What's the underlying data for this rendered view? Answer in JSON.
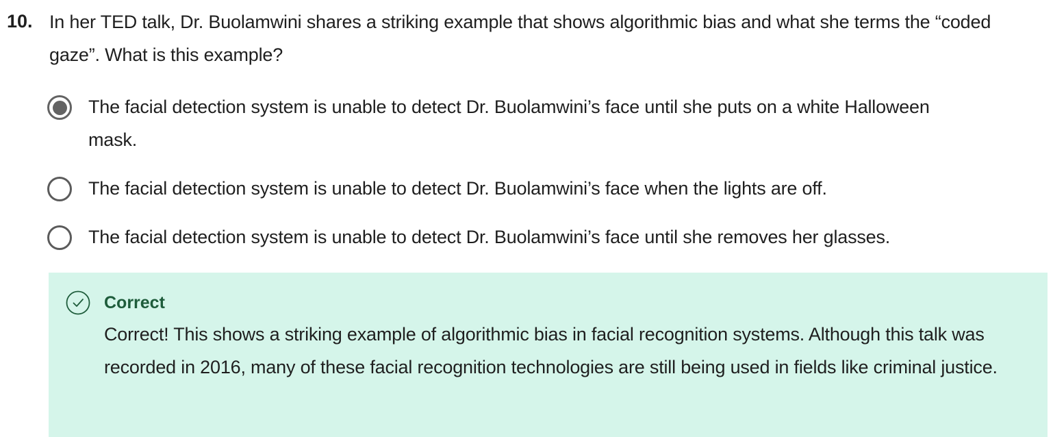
{
  "question": {
    "number": "10.",
    "text": "In her TED talk, Dr. Buolamwini shares a striking example that shows algorithmic bias and what she terms the “coded gaze”. What is this example?"
  },
  "options": [
    {
      "text": "The facial detection system is unable to detect Dr. Buolamwini’s face until she puts on a white Halloween mask.",
      "selected": true
    },
    {
      "text": "The facial detection system is unable to detect Dr. Buolamwini’s face when the lights are off.",
      "selected": false
    },
    {
      "text": "The facial detection system is unable to detect Dr. Buolamwini’s face until she removes her glasses.",
      "selected": false
    }
  ],
  "feedback": {
    "status": "Correct",
    "icon": "check-circle-icon",
    "message": "Correct! This shows a striking example of algorithmic bias in facial recognition systems. Although this talk was recorded in 2016, many of these facial recognition technologies are still being used in fields like criminal justice."
  },
  "colors": {
    "feedback_background": "#d5f5ea",
    "feedback_accent": "#1e5c3b",
    "radio": "#636363"
  }
}
